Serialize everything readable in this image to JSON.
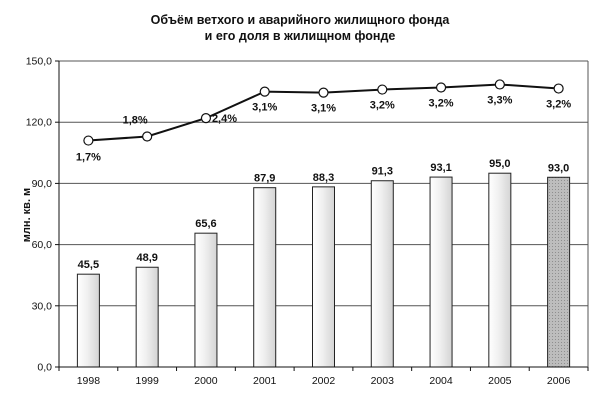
{
  "chart_data": {
    "type": "bar",
    "title_lines": [
      "Объём ветхого и аварийного жилищного фонда",
      "и его доля в жилищном фонде"
    ],
    "ylabel": "млн. кв. м",
    "xlabel": "",
    "ylim": [
      0,
      150
    ],
    "y_ticks": [
      "0,0",
      "30,0",
      "60,0",
      "90,0",
      "120,0",
      "150,0"
    ],
    "y_tick_values": [
      0,
      30,
      60,
      90,
      120,
      150
    ],
    "categories": [
      "1998",
      "1999",
      "2000",
      "2001",
      "2002",
      "2003",
      "2004",
      "2005",
      "2006"
    ],
    "series": [
      {
        "kind": "bar",
        "values": [
          45.5,
          48.9,
          65.6,
          87.9,
          88.3,
          91.3,
          93.1,
          95.0,
          93.0
        ],
        "labels": [
          "45,5",
          "48,9",
          "65,6",
          "87,9",
          "88,3",
          "91,3",
          "93,1",
          "95,0",
          "93,0"
        ]
      },
      {
        "kind": "line",
        "values": [
          1.7,
          1.8,
          2.4,
          3.1,
          3.1,
          3.2,
          3.2,
          3.3,
          3.2
        ],
        "labels": [
          "1,7%",
          "1,8%",
          "2,4%",
          "3,1%",
          "3,1%",
          "3,2%",
          "3,2%",
          "3,3%",
          "3,2%"
        ],
        "plot_y": [
          111,
          113,
          122,
          135,
          134.5,
          136,
          137,
          138.5,
          136.5
        ]
      }
    ],
    "grid": true,
    "legend": "none",
    "colors": {
      "bar_fill_light": "#f2f2f2",
      "bar_fill_last": "#b3b3b3",
      "line": "#111111",
      "marker_fill": "#ffffff"
    }
  }
}
